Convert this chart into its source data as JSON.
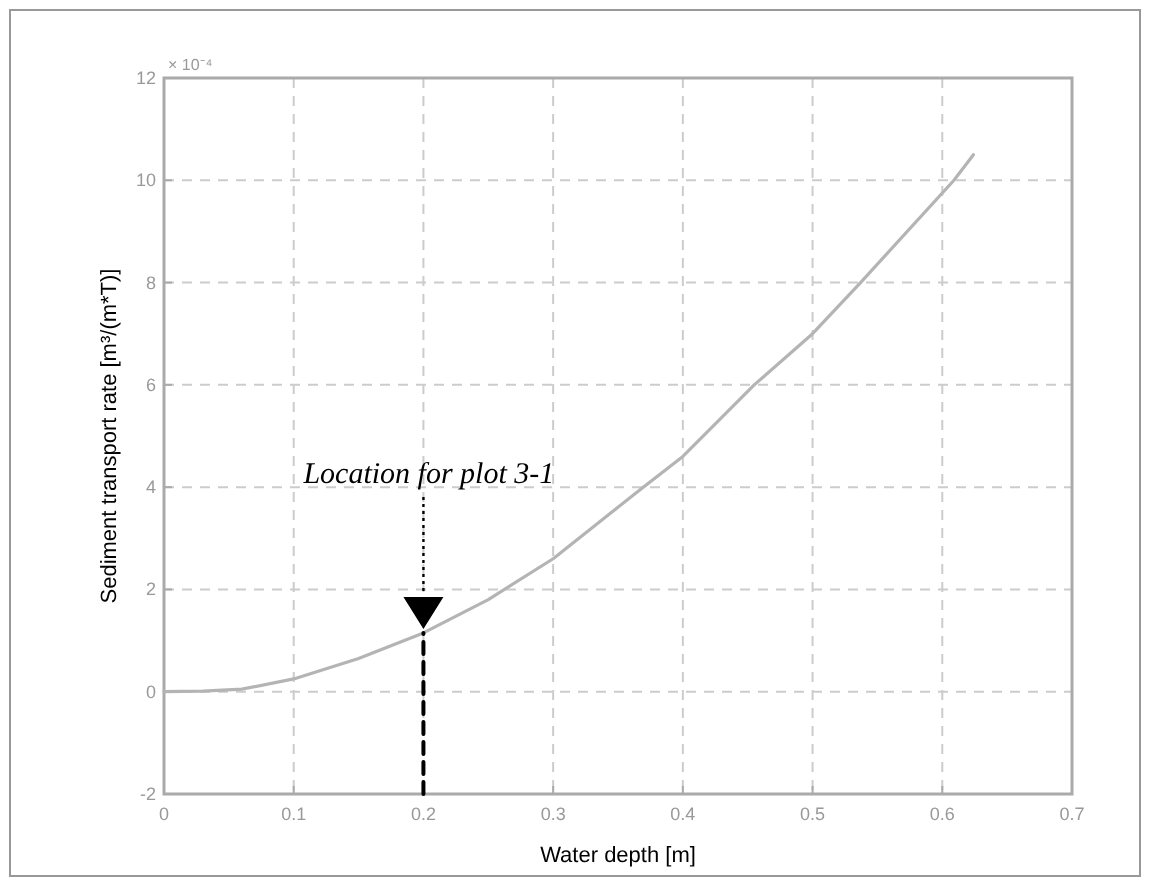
{
  "chart_data": {
    "type": "line",
    "xlabel": "Water depth [m]",
    "ylabel": "Sediment transport rate [m³/(m*T)]",
    "xlim": [
      0,
      0.7
    ],
    "xticks": [
      0,
      0.1,
      0.2,
      0.3,
      0.4,
      0.5,
      0.6,
      0.7
    ],
    "ylim": [
      -2,
      12
    ],
    "yticks": [
      -2,
      0,
      2,
      4,
      6,
      8,
      10,
      12
    ],
    "grid": true,
    "series": [
      {
        "color": "#b4b4b4",
        "x": [
          0,
          0.03,
          0.06,
          0.1,
          0.15,
          0.2,
          0.25,
          0.3,
          0.367,
          0.4,
          0.455,
          0.5,
          0.537,
          0.609,
          0.624
        ],
        "values": [
          0,
          0.01,
          0.05,
          0.25,
          0.65,
          1.15,
          1.8,
          2.6,
          3.95,
          4.6,
          6,
          7,
          8,
          10,
          10.5
        ]
      },
      {
        "color": "#000000",
        "line_style": "dashed",
        "x": [
          0.2,
          0.2
        ],
        "values": [
          -2,
          1.15
        ]
      }
    ],
    "annotations": [
      "× 10⁻⁴",
      "Location for plot 3-1"
    ]
  }
}
